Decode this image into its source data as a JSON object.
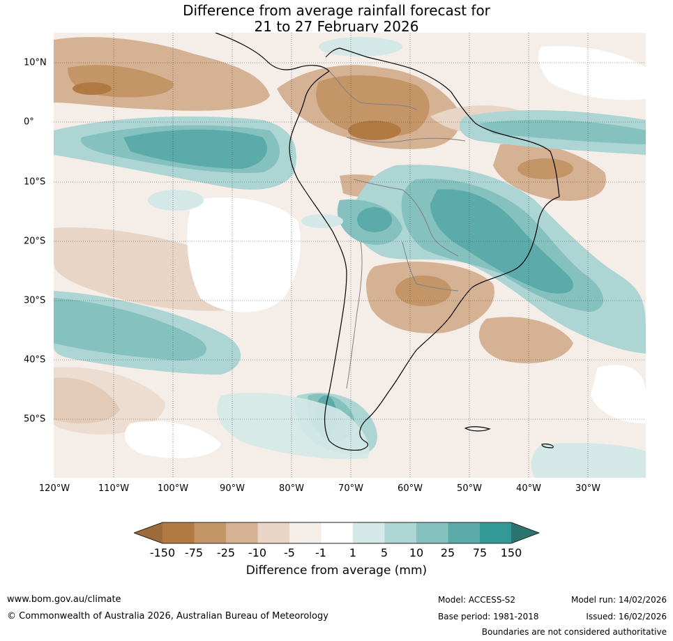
{
  "title": {
    "line1": "Difference from average rainfall forecast for",
    "line2": "21 to 27 February 2026"
  },
  "map": {
    "lat_labels": [
      "10°N",
      "0°",
      "10°S",
      "20°S",
      "30°S",
      "40°S",
      "50°S"
    ],
    "lon_labels": [
      "120°W",
      "110°W",
      "100°W",
      "90°W",
      "80°W",
      "70°W",
      "60°W",
      "50°W",
      "40°W",
      "30°W"
    ]
  },
  "colorbar": {
    "ticks": [
      "-150",
      "-75",
      "-25",
      "-10",
      "-5",
      "-1",
      "1",
      "5",
      "10",
      "25",
      "75",
      "150"
    ],
    "colors": [
      "#9e6a39",
      "#b07a42",
      "#c49667",
      "#d5b293",
      "#e8d5c6",
      "#f5ede8",
      "#ffffff",
      "#d4e9e7",
      "#acd5d3",
      "#84c1bf",
      "#5aabaa",
      "#339996",
      "#2a7470"
    ],
    "title": "Difference from average (mm)"
  },
  "footer": {
    "url": "www.bom.gov.au/climate",
    "copyright": "© Commonwealth of Australia 2026, Australian Bureau of Meteorology",
    "model": "Model: ACCESS-S2",
    "base_period": "Base period: 1981-2018",
    "model_run": "Model run: 14/02/2026",
    "issued": "Issued: 16/02/2026",
    "disclaimer": "Boundaries are not considered authoritative"
  }
}
